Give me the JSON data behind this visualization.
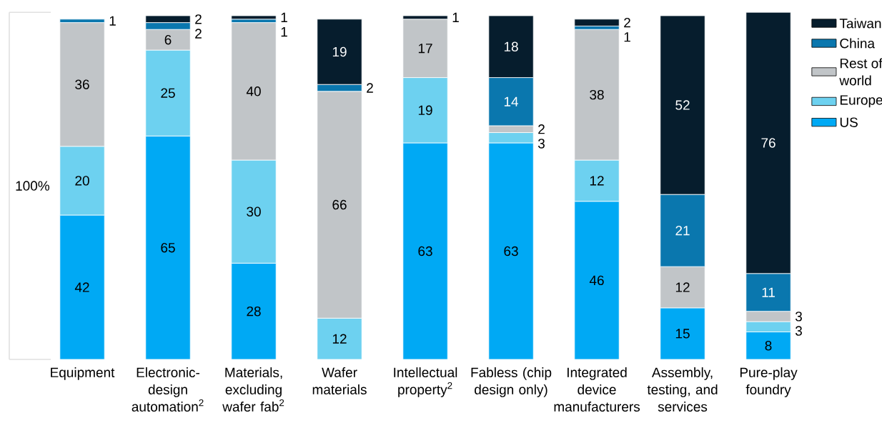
{
  "chart_data": {
    "type": "bar",
    "stacked": true,
    "ylabel": "100%",
    "categories": [
      "Equipment",
      "Electronic-design automation$^{2}$",
      "Materials, excluding wafer fab$^{2}$",
      "Wafer materials",
      "Intellectual property$^{2}$",
      "Fabless (chip design only)",
      "Integrated device manufacturers",
      "Assembly, testing, and services",
      "Pure-play foundry"
    ],
    "series": [
      {
        "name": "US",
        "color": "#00a9f4",
        "values": [
          42,
          65,
          28,
          null,
          63,
          63,
          46,
          15,
          8
        ]
      },
      {
        "name": "Europe",
        "color": "#6dd1f0",
        "values": [
          20,
          25,
          30,
          12,
          19,
          3,
          12,
          null,
          3
        ]
      },
      {
        "name": "Rest of world",
        "color": "#c1c5c8",
        "values": [
          36,
          6,
          40,
          66,
          17,
          2,
          38,
          12,
          3
        ]
      },
      {
        "name": "China",
        "color": "#0a77ae",
        "values": [
          1,
          2,
          1,
          2,
          null,
          14,
          1,
          21,
          11
        ]
      },
      {
        "name": "Taiwan",
        "color": "#061d2d",
        "values": [
          null,
          2,
          1,
          19,
          1,
          18,
          2,
          52,
          76
        ]
      }
    ],
    "ylim": [
      0,
      101
    ],
    "data_labels": true,
    "legend": "right",
    "tick_labels": "x"
  }
}
